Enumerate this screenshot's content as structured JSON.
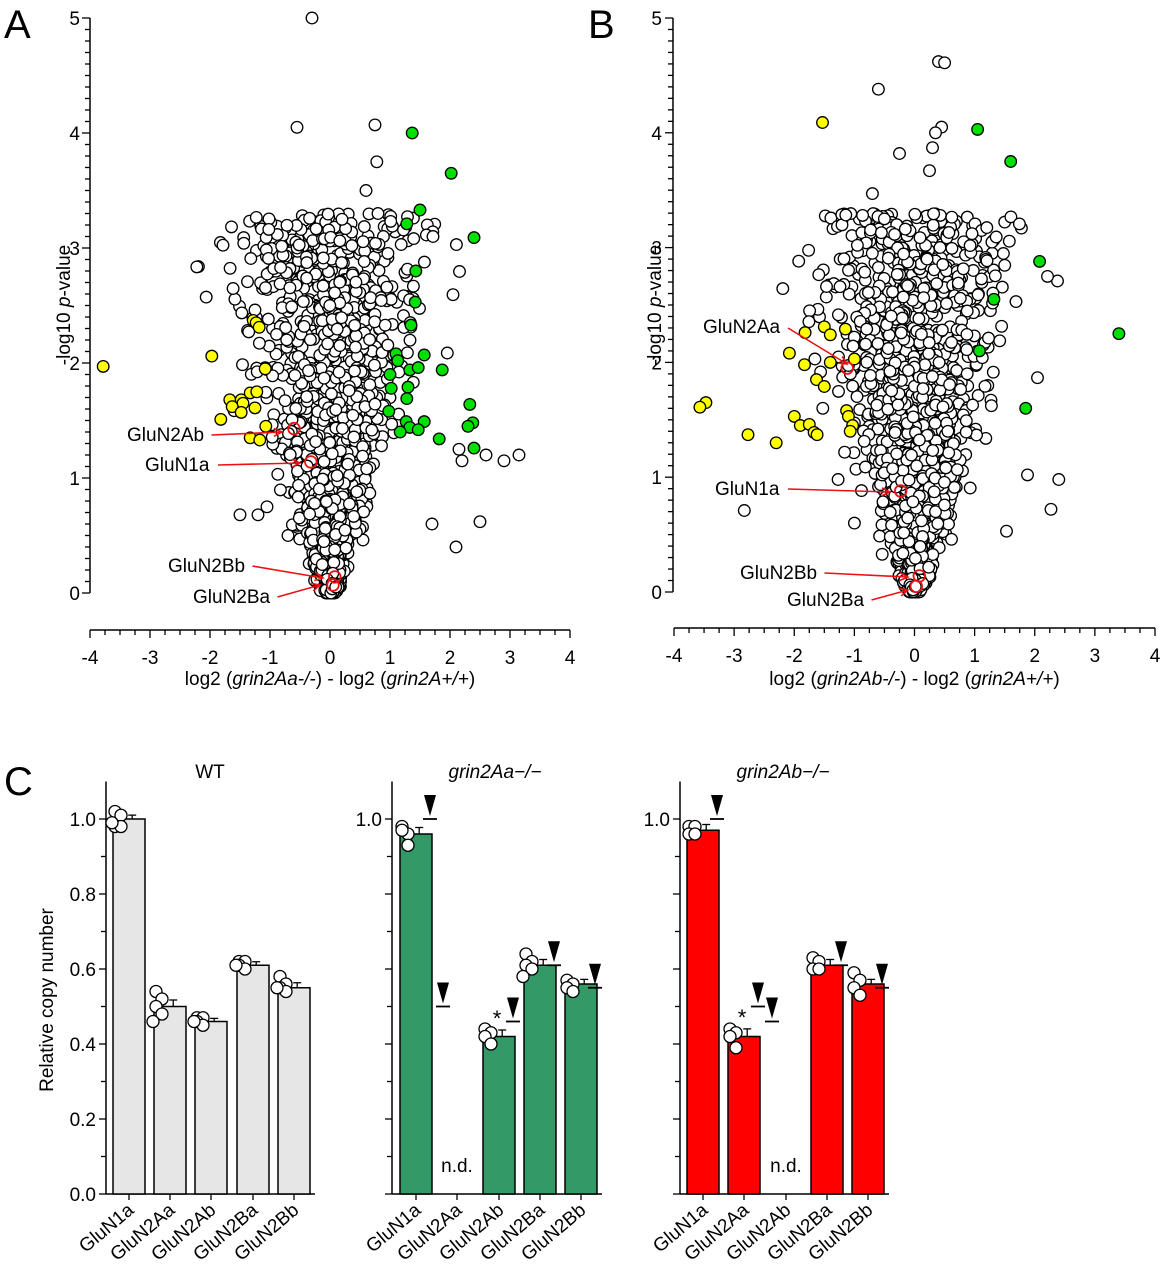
{
  "chart_data": [
    {
      "id": "A",
      "type": "scatter",
      "panel_label": "A",
      "title": "",
      "xlabel_parts": [
        "log2 (",
        "grin2Aa-/-",
        ")  - log2 (",
        "grin2A+/+",
        ")"
      ],
      "ylabel_parts": [
        "-log10 ",
        "p",
        "-value"
      ],
      "xlim": [
        -4,
        4
      ],
      "ylim": [
        0,
        5
      ],
      "xticks": [
        -4,
        -3,
        -2,
        -1,
        0,
        1,
        2,
        3,
        4
      ],
      "yticks": [
        0,
        1,
        2,
        3,
        4,
        5
      ],
      "grid": false,
      "background_cloud": {
        "description": "non-significant proteins (white markers)",
        "approx_count": 2000,
        "center_x": 0,
        "spread_x_at_top": 1.2,
        "max_y": 5.0,
        "seed": 7
      },
      "notable_white_points": [
        [
          -0.3,
          5.0
        ],
        [
          -0.55,
          4.05
        ],
        [
          0.75,
          4.07
        ],
        [
          0.78,
          3.75
        ],
        [
          0.6,
          3.5
        ],
        [
          0.2,
          3.25
        ],
        [
          0.8,
          3.3
        ],
        [
          1.7,
          0.6
        ],
        [
          2.5,
          0.62
        ],
        [
          2.1,
          0.4
        ],
        [
          3.15,
          1.2
        ],
        [
          2.9,
          1.15
        ],
        [
          2.6,
          1.2
        ],
        [
          2.2,
          1.15
        ],
        [
          2.15,
          1.25
        ],
        [
          -1.2,
          0.68
        ],
        [
          -1.5,
          0.68
        ],
        [
          -1.05,
          0.75
        ],
        [
          -0.7,
          0.5
        ]
      ],
      "series": [
        {
          "name": "down (significant)",
          "color": "#ffff00",
          "points": [
            [
              -3.78,
              1.97
            ],
            [
              -1.97,
              2.06
            ],
            [
              -1.28,
              2.37
            ],
            [
              -1.23,
              2.35
            ],
            [
              -1.18,
              2.31
            ],
            [
              -1.08,
              1.95
            ],
            [
              -1.67,
              1.68
            ],
            [
              -1.48,
              1.68
            ],
            [
              -1.33,
              1.74
            ],
            [
              -1.22,
              1.75
            ],
            [
              -1.45,
              1.65
            ],
            [
              -1.63,
              1.62
            ],
            [
              -1.48,
              1.57
            ],
            [
              -1.25,
              1.61
            ],
            [
              -1.82,
              1.51
            ],
            [
              -1.07,
              1.45
            ],
            [
              -1.33,
              1.35
            ],
            [
              -1.17,
              1.33
            ]
          ]
        },
        {
          "name": "up (significant)",
          "color": "#00e000",
          "points": [
            [
              1.37,
              4.0
            ],
            [
              2.02,
              3.65
            ],
            [
              1.5,
              3.33
            ],
            [
              1.28,
              3.21
            ],
            [
              2.4,
              3.09
            ],
            [
              1.43,
              2.8
            ],
            [
              1.42,
              2.53
            ],
            [
              1.35,
              2.33
            ],
            [
              1.1,
              2.08
            ],
            [
              1.57,
              2.07
            ],
            [
              1.13,
              2.02
            ],
            [
              1.33,
              1.94
            ],
            [
              1.47,
              1.96
            ],
            [
              1.0,
              1.9
            ],
            [
              1.3,
              1.79
            ],
            [
              1.02,
              1.78
            ],
            [
              1.28,
              1.69
            ],
            [
              1.87,
              1.94
            ],
            [
              2.33,
              1.64
            ],
            [
              2.38,
              1.48
            ],
            [
              0.98,
              1.58
            ],
            [
              1.27,
              1.49
            ],
            [
              1.57,
              1.49
            ],
            [
              1.33,
              1.44
            ],
            [
              1.17,
              1.4
            ],
            [
              1.47,
              1.42
            ],
            [
              2.3,
              1.45
            ],
            [
              1.82,
              1.34
            ],
            [
              2.4,
              1.26
            ]
          ]
        }
      ],
      "highlighted": [
        {
          "label": "GluN2Ab",
          "x": -0.6,
          "y": 1.43
        },
        {
          "label": "GluN1a",
          "x": -0.32,
          "y": 1.14
        },
        {
          "label": "GluN2Bb",
          "x": 0.08,
          "y": 0.14
        },
        {
          "label": "GluN2Ba",
          "x": 0.05,
          "y": 0.07
        }
      ]
    },
    {
      "id": "B",
      "type": "scatter",
      "panel_label": "B",
      "title": "",
      "xlabel_parts": [
        "log2 (",
        "grin2Ab-/-",
        ")  - log2 (",
        "grin2A+/+",
        ")"
      ],
      "ylabel_parts": [
        "-log10 ",
        "p",
        "-value"
      ],
      "xlim": [
        -4,
        4
      ],
      "ylim": [
        0,
        5
      ],
      "xticks": [
        -4,
        -3,
        -2,
        -1,
        0,
        1,
        2,
        3,
        4
      ],
      "yticks": [
        0,
        1,
        2,
        3,
        4,
        5
      ],
      "grid": false,
      "background_cloud": {
        "description": "non-significant proteins (white markers)",
        "approx_count": 2000,
        "center_x": 0,
        "spread_x_at_top": 1.0,
        "max_y": 4.6,
        "seed": 11
      },
      "notable_white_points": [
        [
          0.4,
          4.62
        ],
        [
          0.5,
          4.61
        ],
        [
          -0.6,
          4.38
        ],
        [
          0.45,
          4.05
        ],
        [
          0.35,
          4.0
        ],
        [
          0.3,
          3.87
        ],
        [
          0.25,
          3.67
        ],
        [
          -0.7,
          3.47
        ],
        [
          -0.25,
          3.82
        ],
        [
          -0.5,
          3.25
        ],
        [
          -0.95,
          3.02
        ],
        [
          -0.55,
          3.13
        ],
        [
          -2.83,
          0.71
        ],
        [
          1.88,
          1.02
        ],
        [
          2.4,
          0.98
        ],
        [
          2.27,
          0.72
        ],
        [
          1.53,
          0.53
        ],
        [
          -1.27,
          0.98
        ],
        [
          -1.0,
          0.6
        ]
      ],
      "series": [
        {
          "name": "down (significant)",
          "color": "#ffff00",
          "points": [
            [
              -1.53,
              4.09
            ],
            [
              -3.47,
              1.65
            ],
            [
              -3.57,
              1.61
            ],
            [
              -1.82,
              2.26
            ],
            [
              -1.5,
              2.31
            ],
            [
              -1.4,
              2.24
            ],
            [
              -1.15,
              2.29
            ],
            [
              -2.08,
              2.08
            ],
            [
              -1.83,
              1.98
            ],
            [
              -1.4,
              2.0
            ],
            [
              -1.0,
              2.03
            ],
            [
              -1.63,
              1.85
            ],
            [
              -1.5,
              1.79
            ],
            [
              -2.77,
              1.37
            ],
            [
              -2.0,
              1.53
            ],
            [
              -1.9,
              1.45
            ],
            [
              -1.75,
              1.46
            ],
            [
              -1.67,
              1.39
            ],
            [
              -2.3,
              1.3
            ],
            [
              -1.62,
              1.37
            ],
            [
              -1.13,
              1.58
            ],
            [
              -1.1,
              1.53
            ],
            [
              -1.03,
              1.45
            ],
            [
              -1.07,
              1.4
            ]
          ]
        },
        {
          "name": "up (significant)",
          "color": "#00e000",
          "points": [
            [
              1.05,
              4.03
            ],
            [
              1.6,
              3.75
            ],
            [
              2.08,
              2.88
            ],
            [
              1.32,
              2.55
            ],
            [
              3.4,
              2.25
            ],
            [
              1.08,
              2.1
            ],
            [
              1.85,
              1.6
            ]
          ]
        }
      ],
      "highlighted": [
        {
          "label": "GluN2Aa",
          "x": -1.12,
          "y": 1.95
        },
        {
          "label": "GluN1a",
          "x": -0.23,
          "y": 0.88
        },
        {
          "label": "GluN2Bb",
          "x": 0.08,
          "y": 0.14
        },
        {
          "label": "GluN2Ba",
          "x": 0.03,
          "y": 0.05
        }
      ]
    },
    {
      "id": "C",
      "type": "bar",
      "panel_label": "C",
      "ylabel": "Relative copy number",
      "ylim": [
        0,
        1.1
      ],
      "yticks": [
        0.0,
        0.2,
        0.4,
        0.6,
        0.8,
        1.0
      ],
      "categories": [
        "GluN1a",
        "GluN2Aa",
        "GluN2Ab",
        "GluN2Ba",
        "GluN2Bb"
      ],
      "nd_label": "n.d.",
      "significance_marker": "*",
      "reference_marker": "arrowhead at WT mean",
      "wt_values": [
        1.0,
        0.5,
        0.46,
        0.61,
        0.55
      ],
      "groups": [
        {
          "title": "WT",
          "italic": false,
          "color": "#e6e6e6",
          "show_tick_labels": true,
          "values": [
            1.0,
            0.5,
            0.46,
            0.61,
            0.55
          ],
          "errors": [
            0.005,
            0.012,
            0.003,
            0.004,
            0.008
          ],
          "nd": [
            false,
            false,
            false,
            false,
            false
          ],
          "significant": [
            false,
            false,
            false,
            false,
            false
          ],
          "show_wt_markers": false,
          "points": [
            [
              1.02,
              1.01,
              0.98,
              0.98,
              0.99
            ],
            [
              0.54,
              0.52,
              0.5,
              0.48,
              0.46
            ],
            [
              0.47,
              0.47,
              0.46,
              0.45,
              0.46
            ],
            [
              0.62,
              0.62,
              0.61,
              0.6,
              0.61
            ],
            [
              0.58,
              0.56,
              0.55,
              0.54,
              0.55
            ]
          ]
        },
        {
          "title": "grin2Aa−/−",
          "italic": true,
          "color": "#339966",
          "show_tick_labels": false,
          "values": [
            0.96,
            null,
            0.42,
            0.61,
            0.56
          ],
          "errors": [
            0.012,
            null,
            0.012,
            0.01,
            0.007
          ],
          "nd": [
            false,
            true,
            false,
            false,
            false
          ],
          "significant": [
            false,
            false,
            true,
            false,
            false
          ],
          "show_wt_markers": true,
          "points": [
            [
              0.98,
              0.96,
              0.97,
              0.93
            ],
            [],
            [
              0.44,
              0.43,
              0.42,
              0.4
            ],
            [
              0.64,
              0.62,
              0.61,
              0.6,
              0.58
            ],
            [
              0.57,
              0.56,
              0.55,
              0.54
            ]
          ]
        },
        {
          "title": "grin2Ab−/−",
          "italic": true,
          "color": "#ff0000",
          "show_tick_labels": false,
          "values": [
            0.97,
            0.42,
            null,
            0.61,
            0.56
          ],
          "errors": [
            0.01,
            0.015,
            null,
            0.01,
            0.007
          ],
          "nd": [
            false,
            false,
            true,
            false,
            false
          ],
          "significant": [
            false,
            true,
            false,
            false,
            false
          ],
          "show_wt_markers": true,
          "points": [
            [
              0.98,
              0.98,
              0.96,
              0.96
            ],
            [
              0.44,
              0.43,
              0.42,
              0.39
            ],
            [],
            [
              0.63,
              0.62,
              0.6,
              0.6
            ],
            [
              0.59,
              0.57,
              0.55,
              0.53
            ]
          ]
        }
      ]
    }
  ]
}
